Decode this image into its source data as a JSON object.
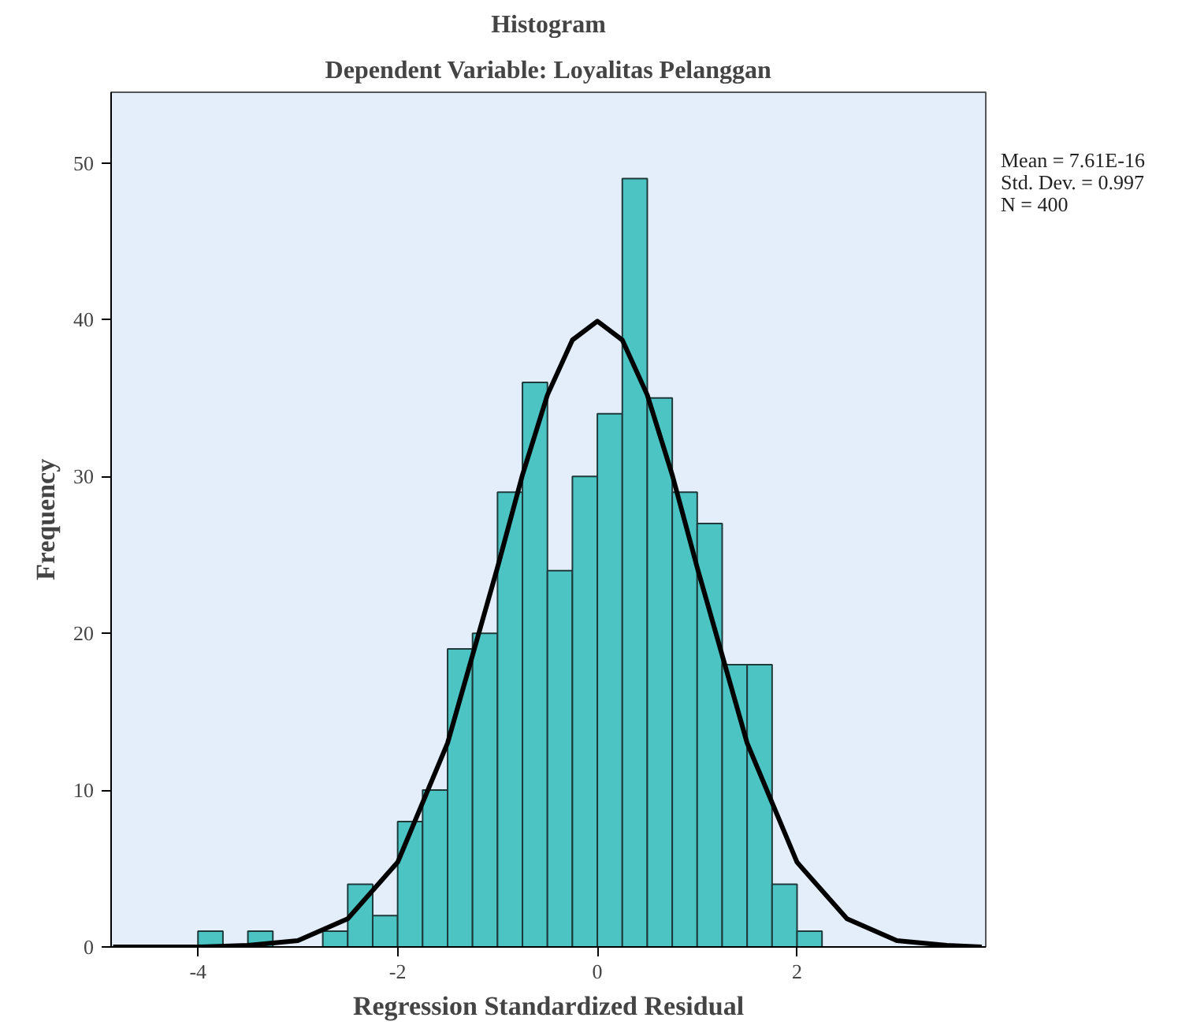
{
  "chart_data": {
    "type": "histogram",
    "title": "Histogram",
    "subtitle": "Dependent Variable: Loyalitas Pelanggan",
    "xlabel": "Regression Standardized Residual",
    "ylabel": "Frequency",
    "bins": [
      -4,
      -3.75,
      -3.5,
      -3.25,
      -3,
      -2.75,
      -2.5,
      -2.25,
      -2,
      -1.75,
      -1.5,
      -1.25,
      -1,
      -0.75,
      -0.5,
      -0.25,
      0,
      0.25,
      0.5,
      0.75,
      1,
      1.25,
      1.5,
      1.75,
      2,
      2.25
    ],
    "values": [
      1,
      0,
      1,
      0,
      0,
      1,
      4,
      2,
      8,
      10,
      19,
      20,
      29,
      36,
      24,
      30,
      34,
      49,
      35,
      29,
      27,
      18,
      18,
      4,
      1
    ],
    "color": "#4cc4c4",
    "series": [
      {
        "type": "line",
        "color": "#000000",
        "x": [
          -4.85,
          -4,
          -3.5,
          -3,
          -2.5,
          -2,
          -1.5,
          -1,
          -0.75,
          -0.5,
          -0.25,
          0,
          0.25,
          0.5,
          0.75,
          1,
          1.5,
          2,
          2.5,
          3,
          3.5,
          3.85
        ],
        "values": [
          0,
          0,
          0.1,
          0.4,
          1.8,
          5.4,
          13,
          24.2,
          30.1,
          35.2,
          38.7,
          39.9,
          38.7,
          35.2,
          30.1,
          24.2,
          13,
          5.4,
          1.8,
          0.4,
          0.1,
          0
        ]
      }
    ],
    "xlim": [
      -4.87,
      3.89
    ],
    "ylim": [
      0,
      54.5
    ],
    "xticks": [
      -4,
      -2,
      0,
      2
    ],
    "yticks": [
      0,
      10,
      20,
      30,
      40,
      50
    ],
    "grid": false,
    "annotations": [
      "Mean = 7.61E-16",
      "Std. Dev. = 0.997",
      "N = 400"
    ]
  }
}
